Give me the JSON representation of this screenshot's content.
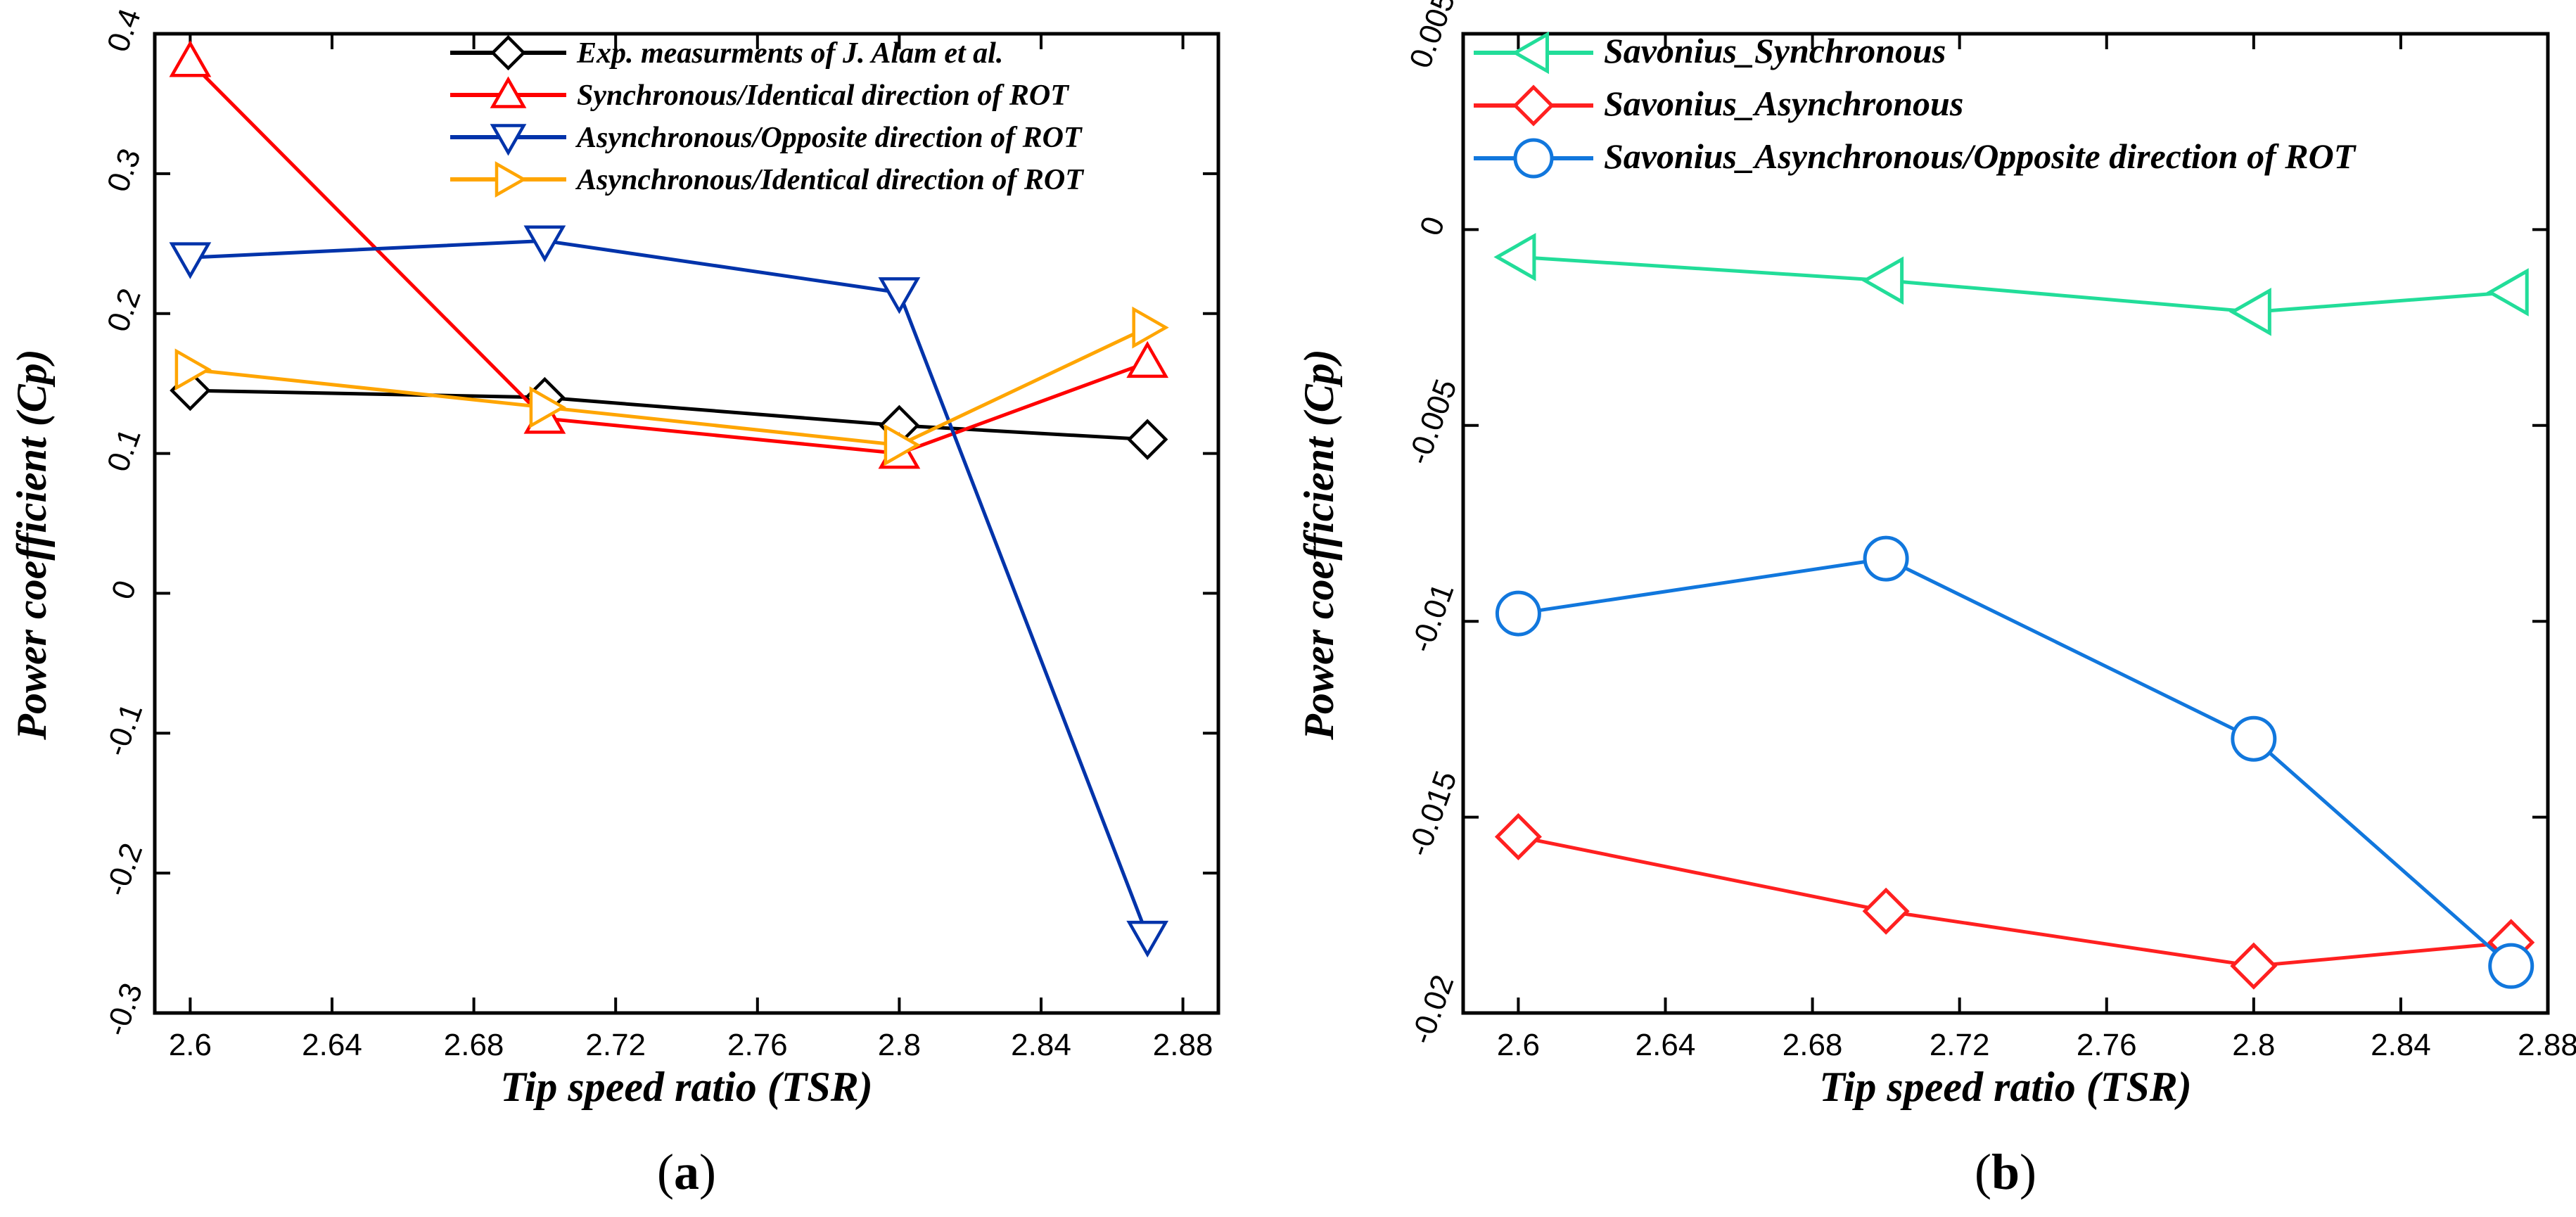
{
  "chart_data": [
    {
      "type": "line",
      "panel_label": "a",
      "xlabel": "Tip speed ratio (TSR)",
      "ylabel": "Power coefficient (Cp)",
      "xlim": [
        2.59,
        2.89
      ],
      "ylim": [
        -0.3,
        0.4
      ],
      "xticks": [
        "2.6",
        "2.64",
        "2.68",
        "2.72",
        "2.76",
        "2.8",
        "2.84",
        "2.88"
      ],
      "yticks": [
        "-0.3",
        "-0.2",
        "-0.1",
        "0",
        "0.1",
        "0.2",
        "0.3",
        "0.4"
      ],
      "legend_position": "top-right",
      "grid": false,
      "series": [
        {
          "name": "Exp. measurments of J. Alam et al.",
          "color": "#000000",
          "marker": "diamond",
          "x": [
            2.6,
            2.7,
            2.8,
            2.87
          ],
          "y": [
            0.145,
            0.14,
            0.12,
            0.11
          ]
        },
        {
          "name": "Synchronous/Identical direction of ROT",
          "color": "#ff0000",
          "marker": "triangle-up",
          "x": [
            2.6,
            2.7,
            2.8,
            2.87
          ],
          "y": [
            0.38,
            0.125,
            0.1,
            0.165
          ]
        },
        {
          "name": "Asynchronous/Opposite direction of ROT",
          "color": "#0033aa",
          "marker": "triangle-down",
          "x": [
            2.6,
            2.7,
            2.8,
            2.87
          ],
          "y": [
            0.24,
            0.252,
            0.215,
            -0.245
          ]
        },
        {
          "name": "Asynchronous/Identical direction of ROT",
          "color": "#ffa500",
          "marker": "triangle-right",
          "x": [
            2.6,
            2.7,
            2.8,
            2.87
          ],
          "y": [
            0.16,
            0.133,
            0.106,
            0.19
          ]
        }
      ]
    },
    {
      "type": "line",
      "panel_label": "b",
      "xlabel": "Tip speed ratio (TSR)",
      "ylabel": "Power coefficient (Cp)",
      "xlim": [
        2.585,
        2.88
      ],
      "ylim": [
        -0.02,
        0.005
      ],
      "xticks": [
        "2.6",
        "2.64",
        "2.68",
        "2.72",
        "2.76",
        "2.8",
        "2.84",
        "2.88"
      ],
      "yticks": [
        "-0.02",
        "-0.015",
        "-0.01",
        "-0.005",
        "0",
        "0.005"
      ],
      "legend_position": "top-left",
      "grid": false,
      "series": [
        {
          "name": "Savonius_Synchronous",
          "color": "#22dd99",
          "marker": "triangle-left",
          "x": [
            2.6,
            2.7,
            2.8,
            2.87
          ],
          "y": [
            -0.0007,
            -0.0013,
            -0.0021,
            -0.0016
          ]
        },
        {
          "name": "Savonius_Asynchronous",
          "color": "#ff2020",
          "marker": "diamond",
          "x": [
            2.6,
            2.7,
            2.8,
            2.87
          ],
          "y": [
            -0.0155,
            -0.0174,
            -0.0188,
            -0.0182
          ]
        },
        {
          "name": "Savonius_Asynchronous/Opposite direction of ROT",
          "color": "#1177dd",
          "marker": "circle",
          "x": [
            2.6,
            2.7,
            2.8,
            2.87
          ],
          "y": [
            -0.0098,
            -0.0084,
            -0.013,
            -0.0188
          ]
        }
      ]
    }
  ]
}
